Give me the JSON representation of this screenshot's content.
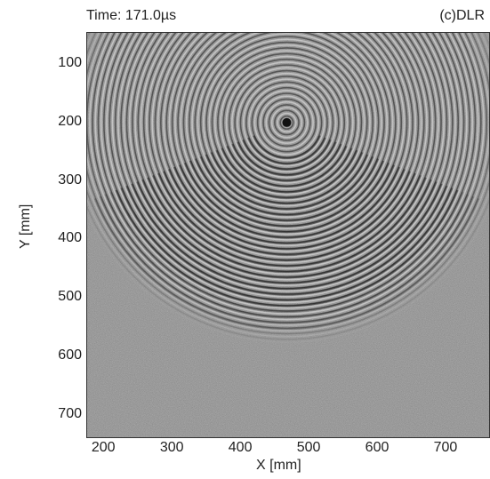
{
  "header": {
    "time_label": "Time: 171.0µs",
    "credit": "(c)DLR"
  },
  "axes": {
    "xlabel": "X [mm]",
    "ylabel": "Y [mm]",
    "xticks": [
      "200",
      "300",
      "400",
      "500",
      "600",
      "700"
    ],
    "yticks": [
      "100",
      "200",
      "300",
      "400",
      "500",
      "600",
      "700"
    ],
    "xrange": [
      175,
      765
    ],
    "yrange": [
      45,
      740
    ],
    "y_inverted": true
  },
  "image": {
    "description_kind": "grayscale wavefield",
    "source_center_mm": [
      468,
      200
    ],
    "background_gray": "#808080"
  }
}
